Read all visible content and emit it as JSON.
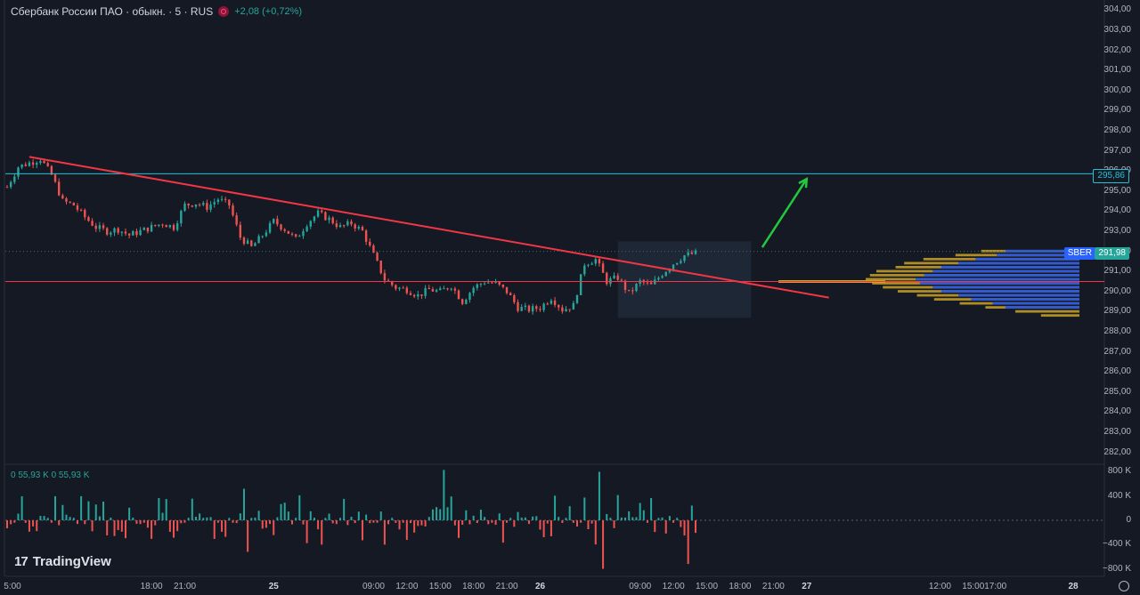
{
  "header": {
    "title": "Сбербанк России ПАО · обыкн. · 5 · RUS",
    "change": "+2,08 (+0,72%)",
    "status_icon": "market-status-icon"
  },
  "volume_legend": "0 55,93 K 0 55,93 K",
  "logo": {
    "mark": "17",
    "text": "TradingView"
  },
  "settings_icon": "gear-icon",
  "colors": {
    "background": "#151924",
    "up": "#26a69a",
    "down": "#ef5350",
    "trendline": "#f23645",
    "resistance": "#22c1d8",
    "arrow": "#22c93c",
    "profile_blue": "#2f5ad8",
    "profile_gold": "#c9a227"
  },
  "chart_data": {
    "type": "candlestick",
    "symbol": "SBER",
    "last_price_label": "291,98",
    "resistance_label": "295,86",
    "y_axis": {
      "min": 281.5,
      "max": 304.5,
      "ticks": [
        "304,00",
        "303,00",
        "302,00",
        "301,00",
        "300,00",
        "299,00",
        "298,00",
        "297,00",
        "296,00",
        "295,00",
        "294,00",
        "293,00",
        "292,00",
        "291,00",
        "290,00",
        "289,00",
        "288,00",
        "287,00",
        "286,00",
        "285,00",
        "284,00",
        "283,00",
        "282,00"
      ]
    },
    "x_axis": {
      "ticks": [
        {
          "label": "5:00",
          "t": 0
        },
        {
          "label": "18:00",
          "t": 13
        },
        {
          "label": "21:00",
          "t": 16
        },
        {
          "label": "25",
          "t": 24,
          "bold": true
        },
        {
          "label": "09:00",
          "t": 33
        },
        {
          "label": "12:00",
          "t": 36
        },
        {
          "label": "15:00",
          "t": 39
        },
        {
          "label": "18:00",
          "t": 42
        },
        {
          "label": "21:00",
          "t": 45
        },
        {
          "label": "26",
          "t": 48,
          "bold": true
        },
        {
          "label": "09:00",
          "t": 57
        },
        {
          "label": "12:00",
          "t": 60
        },
        {
          "label": "15:00",
          "t": 63
        },
        {
          "label": "18:00",
          "t": 66
        },
        {
          "label": "21:00",
          "t": 69
        },
        {
          "label": "27",
          "t": 72,
          "bold": true
        },
        {
          "label": "12:00",
          "t": 84
        },
        {
          "label": "15:00",
          "t": 87
        },
        {
          "label": "17:00",
          "t": 89
        },
        {
          "label": "28",
          "t": 96,
          "bold": true
        }
      ]
    },
    "price_path": [
      [
        0,
        295.2
      ],
      [
        1,
        296.2
      ],
      [
        2,
        296.4
      ],
      [
        3,
        296.6
      ],
      [
        4,
        295.8
      ],
      [
        5,
        294.5
      ],
      [
        6,
        294.3
      ],
      [
        7,
        293.7
      ],
      [
        8,
        293.2
      ],
      [
        9,
        293.0
      ],
      [
        10,
        293.1
      ],
      [
        11,
        292.8
      ],
      [
        12,
        293.0
      ],
      [
        13,
        293.2
      ],
      [
        14,
        293.4
      ],
      [
        15,
        293.2
      ],
      [
        16,
        294.3
      ],
      [
        17,
        294.4
      ],
      [
        18,
        294.2
      ],
      [
        19,
        294.6
      ],
      [
        20,
        294.3
      ],
      [
        21,
        292.7
      ],
      [
        22,
        292.2
      ],
      [
        23,
        292.8
      ],
      [
        24,
        293.5
      ],
      [
        25,
        293.1
      ],
      [
        26,
        292.6
      ],
      [
        27,
        293.4
      ],
      [
        28,
        293.9
      ],
      [
        29,
        293.6
      ],
      [
        30,
        293.2
      ],
      [
        31,
        293.4
      ],
      [
        32,
        293.0
      ],
      [
        33,
        291.8
      ],
      [
        34,
        290.6
      ],
      [
        35,
        290.2
      ],
      [
        36,
        290.1
      ],
      [
        37,
        289.8
      ],
      [
        38,
        290.1
      ],
      [
        39,
        290.0
      ],
      [
        40,
        290.3
      ],
      [
        41,
        289.5
      ],
      [
        42,
        290.2
      ],
      [
        43,
        290.5
      ],
      [
        44,
        290.4
      ],
      [
        45,
        290.0
      ],
      [
        46,
        289.2
      ],
      [
        47,
        289.1
      ],
      [
        48,
        289.2
      ],
      [
        49,
        289.7
      ],
      [
        50,
        289.1
      ],
      [
        51,
        289.3
      ],
      [
        52,
        291.4
      ],
      [
        53,
        291.6
      ],
      [
        54,
        290.5
      ],
      [
        55,
        290.7
      ],
      [
        56,
        289.9
      ],
      [
        57,
        290.5
      ],
      [
        58,
        290.3
      ],
      [
        59,
        290.9
      ],
      [
        60,
        291.4
      ],
      [
        61,
        291.8
      ],
      [
        62,
        291.9
      ]
    ],
    "trendline": {
      "from": [
        2,
        296.7
      ],
      "to": [
        74,
        289.7
      ]
    },
    "resistance": 295.86,
    "support": 290.5,
    "last_price_level": 292.0,
    "range_box": {
      "t_from": 55,
      "t_to": 67,
      "price_from": 288.7,
      "price_to": 292.5
    },
    "arrow": {
      "from": [
        68,
        292.2
      ],
      "to": [
        72,
        295.6
      ]
    },
    "volume_profile": [
      {
        "price": 292.0,
        "volume": 0.46,
        "value_area": 0.18
      },
      {
        "price": 291.8,
        "volume": 0.58,
        "value_area": 0.22
      },
      {
        "price": 291.6,
        "volume": 0.73,
        "value_area": 0.32
      },
      {
        "price": 291.4,
        "volume": 0.82,
        "value_area": 0.4
      },
      {
        "price": 291.2,
        "volume": 0.86,
        "value_area": 0.48
      },
      {
        "price": 291.0,
        "volume": 0.95,
        "value_area": 0.52
      },
      {
        "price": 290.8,
        "volume": 0.98,
        "value_area": 0.56
      },
      {
        "price": 290.6,
        "volume": 1.0,
        "value_area": 0.6
      },
      {
        "price": 290.4,
        "volume": 0.97,
        "value_area": 0.58
      },
      {
        "price": 290.2,
        "volume": 0.92,
        "value_area": 0.52
      },
      {
        "price": 290.0,
        "volume": 0.85,
        "value_area": 0.48
      },
      {
        "price": 289.8,
        "volume": 0.76,
        "value_area": 0.4
      },
      {
        "price": 289.6,
        "volume": 0.68,
        "value_area": 0.34
      },
      {
        "price": 289.4,
        "volume": 0.56,
        "value_area": 0.24
      },
      {
        "price": 289.2,
        "volume": 0.44,
        "value_area": 0.18
      },
      {
        "price": 289.0,
        "volume": 0.3,
        "value_area": 0.0
      },
      {
        "price": 288.8,
        "volume": 0.18,
        "value_area": 0.0
      }
    ],
    "volume_axis": {
      "min": -880,
      "max": 880,
      "ticks": [
        "800 K",
        "400 K",
        "0",
        "−400 K",
        "−800 K"
      ],
      "tick_values": [
        800,
        400,
        0,
        -400,
        -800
      ]
    }
  }
}
